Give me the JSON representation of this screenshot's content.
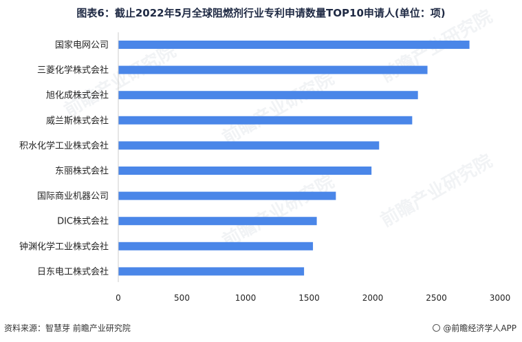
{
  "title": "图表6：截止2022年5月全球阻燃剂行业专利申请数量TOP10申请人(单位：项)",
  "chart_data": {
    "type": "bar",
    "orientation": "horizontal",
    "title": "图表6：截止2022年5月全球阻燃剂行业专利申请数量TOP10申请人(单位：项)",
    "categories": [
      "国家电网公司",
      "三菱化学株式会社",
      "旭化成株式会社",
      "威兰斯株式会社",
      "积水化学工业株式会社",
      "东丽株式会社",
      "国际商业机器公司",
      "DIC株式会社",
      "钟渊化学工业株式会社",
      "日东电工株式会社"
    ],
    "values": [
      2760,
      2430,
      2355,
      2310,
      2050,
      1990,
      1710,
      1560,
      1530,
      1460
    ],
    "xlim": [
      0,
      3000
    ],
    "xticks": [
      0,
      500,
      1000,
      1500,
      2000,
      2500,
      3000
    ],
    "bar_color": "#4a86e8",
    "grid": false
  },
  "footer": {
    "source": "资料来源：智慧芽 前瞻产业研究院",
    "brand": "@前瞻经济学人APP"
  },
  "watermark": "前瞻产业研究院"
}
